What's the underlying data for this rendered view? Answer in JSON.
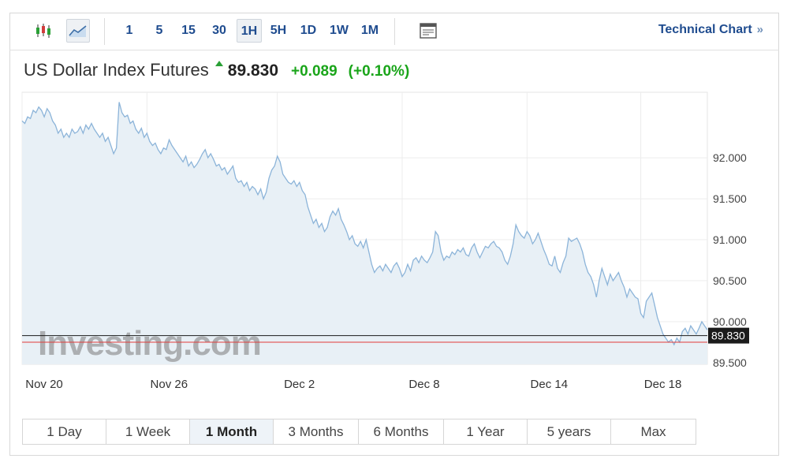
{
  "toolbar": {
    "chart_types": [
      {
        "icon": "candlestick-chart-icon",
        "active": false
      },
      {
        "icon": "area-chart-icon",
        "active": true
      }
    ],
    "intervals": [
      "1",
      "5",
      "15",
      "30",
      "1H",
      "5H",
      "1D",
      "1W",
      "1M"
    ],
    "active_interval": "1H",
    "layout_icon": "layout-icon",
    "technical_chart_label": "Technical Chart",
    "technical_chart_arrow": "»"
  },
  "header": {
    "name": "US Dollar Index Futures",
    "price": "89.830",
    "change": "+0.089",
    "change_percent": "(+0.10%)",
    "direction_icon": "up-arrow-icon"
  },
  "colors": {
    "accent": "#1f4c8f",
    "up": "#1aa51a",
    "series_line": "#8cb4d9",
    "series_fill": "#e8f0f6",
    "price_marker": "#1b1b1b",
    "reference_line": "#e23b3b"
  },
  "chart_data": {
    "type": "area",
    "watermark": "Investing.com",
    "x_tick_labels": [
      "Nov 20",
      "Nov 26",
      "Dec 2",
      "Dec 8",
      "Dec 14",
      "Dec 18"
    ],
    "x_tick_index": [
      0,
      45,
      92,
      137,
      182,
      223
    ],
    "y_ticks": [
      "92.000",
      "91.500",
      "91.000",
      "90.500",
      "90.000",
      "89.500"
    ],
    "y_tick_values": [
      92.0,
      91.5,
      91.0,
      90.5,
      90.0,
      89.5
    ],
    "ylim": [
      89.48,
      92.8
    ],
    "current_price_label": "89.830",
    "current_price": 89.83,
    "reference_value": 89.75,
    "grid": true,
    "series": [
      {
        "values": [
          92.45,
          92.42,
          92.5,
          92.48,
          92.58,
          92.55,
          92.62,
          92.58,
          92.5,
          92.6,
          92.55,
          92.45,
          92.4,
          92.3,
          92.35,
          92.25,
          92.3,
          92.25,
          92.35,
          92.3,
          92.32,
          92.38,
          92.3,
          92.4,
          92.35,
          92.42,
          92.35,
          92.3,
          92.25,
          92.3,
          92.2,
          92.25,
          92.15,
          92.05,
          92.12,
          92.68,
          92.55,
          92.5,
          92.52,
          92.42,
          92.45,
          92.35,
          92.3,
          92.36,
          92.25,
          92.3,
          92.2,
          92.15,
          92.18,
          92.1,
          92.05,
          92.12,
          92.1,
          92.22,
          92.15,
          92.1,
          92.05,
          92.0,
          91.95,
          92.02,
          91.9,
          91.95,
          91.88,
          91.92,
          91.98,
          92.05,
          92.1,
          92.0,
          92.05,
          91.98,
          91.9,
          91.92,
          91.85,
          91.88,
          91.8,
          91.85,
          91.9,
          91.75,
          91.7,
          91.72,
          91.65,
          91.7,
          91.6,
          91.65,
          91.62,
          91.55,
          91.62,
          91.5,
          91.58,
          91.75,
          91.85,
          91.9,
          92.02,
          91.95,
          91.8,
          91.75,
          91.7,
          91.68,
          91.72,
          91.65,
          91.7,
          91.6,
          91.55,
          91.4,
          91.3,
          91.2,
          91.25,
          91.15,
          91.2,
          91.1,
          91.15,
          91.28,
          91.35,
          91.3,
          91.38,
          91.25,
          91.18,
          91.1,
          91.0,
          91.05,
          90.95,
          90.92,
          90.98,
          90.9,
          91.0,
          90.85,
          90.7,
          90.6,
          90.65,
          90.68,
          90.62,
          90.7,
          90.65,
          90.6,
          90.68,
          90.72,
          90.65,
          90.55,
          90.6,
          90.7,
          90.62,
          90.75,
          90.78,
          90.72,
          90.8,
          90.75,
          90.72,
          90.78,
          90.85,
          91.1,
          91.05,
          90.85,
          90.75,
          90.8,
          90.78,
          90.85,
          90.82,
          90.88,
          90.85,
          90.9,
          90.82,
          90.8,
          90.9,
          90.95,
          90.85,
          90.78,
          90.85,
          90.92,
          90.9,
          90.95,
          90.98,
          90.92,
          90.9,
          90.85,
          90.75,
          90.7,
          90.8,
          90.95,
          91.18,
          91.1,
          91.05,
          91.02,
          91.1,
          91.05,
          90.95,
          91.0,
          91.08,
          90.98,
          90.88,
          90.8,
          90.7,
          90.68,
          90.8,
          90.65,
          90.6,
          90.72,
          90.8,
          91.02,
          90.98,
          91.0,
          91.02,
          90.95,
          90.85,
          90.7,
          90.6,
          90.55,
          90.45,
          90.3,
          90.5,
          90.65,
          90.55,
          90.45,
          90.58,
          90.5,
          90.55,
          90.6,
          90.5,
          90.42,
          90.3,
          90.4,
          90.35,
          90.3,
          90.28,
          90.1,
          90.05,
          90.25,
          90.3,
          90.35,
          90.2,
          90.05,
          89.95,
          89.85,
          89.8,
          89.75,
          89.78,
          89.72,
          89.8,
          89.75,
          89.88,
          89.92,
          89.85,
          89.95,
          89.9,
          89.85,
          89.92,
          90.0,
          89.95,
          89.9
        ]
      }
    ]
  },
  "time_ranges": {
    "items": [
      "1 Day",
      "1 Week",
      "1 Month",
      "3 Months",
      "6 Months",
      "1 Year",
      "5 years",
      "Max"
    ],
    "active": "1 Month"
  }
}
